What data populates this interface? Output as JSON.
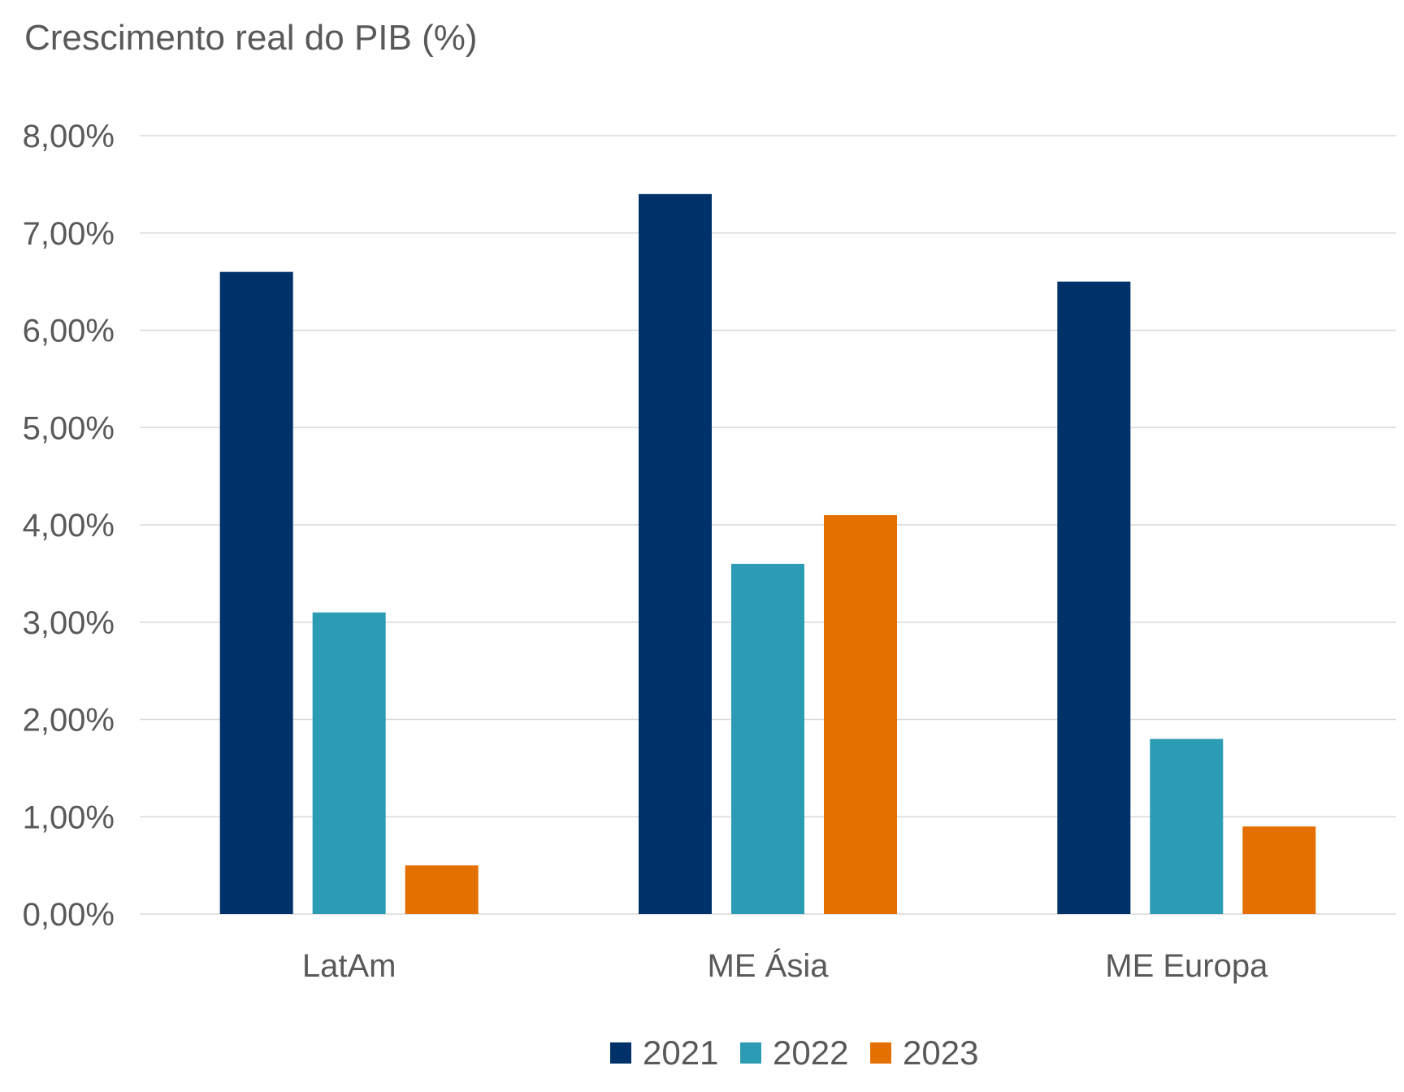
{
  "chart_data": {
    "type": "bar",
    "title": "Crescimento real do PIB (%)",
    "xlabel": "",
    "ylabel": "",
    "categories": [
      "LatAm",
      "ME Ásia",
      "ME Europa"
    ],
    "series": [
      {
        "name": "2021",
        "color": "#003169",
        "values": [
          6.6,
          7.4,
          6.5
        ]
      },
      {
        "name": "2022",
        "color": "#2C9CB5",
        "values": [
          3.1,
          3.6,
          1.8
        ]
      },
      {
        "name": "2023",
        "color": "#E37000",
        "values": [
          0.5,
          4.1,
          0.9
        ]
      }
    ],
    "ylim": [
      0,
      8
    ],
    "yticks": [
      0,
      1,
      2,
      3,
      4,
      5,
      6,
      7,
      8
    ],
    "ytick_labels": [
      "0,00%",
      "1,00%",
      "2,00%",
      "3,00%",
      "4,00%",
      "5,00%",
      "6,00%",
      "7,00%",
      "8,00%"
    ],
    "grid": true,
    "legend_position": "bottom"
  }
}
